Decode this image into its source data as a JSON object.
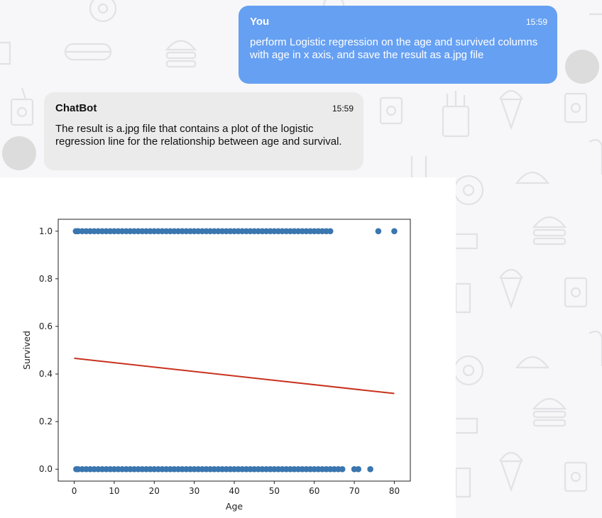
{
  "messages": [
    {
      "sender": "You",
      "time": "15:59",
      "text": "perform Logistic regression on the age and survived columns with age in x axis, and save the result as a.jpg file"
    },
    {
      "sender": "ChatBot",
      "time": "15:59",
      "text": "The result is a.jpg file that contains a plot of the logistic regression line for the relationship between age and survival."
    }
  ],
  "colors": {
    "user_bubble": "#66a0f2",
    "bot_bubble": "#ebebeb",
    "points": "#3a76af",
    "line": "#c8321e"
  },
  "chart_data": {
    "type": "scatter",
    "xlabel": "Age",
    "ylabel": "Survived",
    "xlim": [
      -4,
      84
    ],
    "ylim": [
      -0.05,
      1.05
    ],
    "xticks": [
      0,
      10,
      20,
      30,
      40,
      50,
      60,
      70,
      80
    ],
    "yticks": [
      0.0,
      0.2,
      0.4,
      0.6,
      0.8,
      1.0
    ],
    "ytick_labels": [
      "0.0",
      "0.2",
      "0.4",
      "0.6",
      "0.8",
      "1.0"
    ],
    "grid": false,
    "series": [
      {
        "kind": "points",
        "y": 1,
        "x": [
          0.4,
          0.9,
          1,
          2,
          3,
          4,
          5,
          6,
          7,
          8,
          9,
          10,
          11,
          12,
          13,
          14,
          15,
          16,
          17,
          18,
          19,
          20,
          21,
          22,
          23,
          24,
          25,
          26,
          27,
          28,
          29,
          30,
          31,
          32,
          33,
          34,
          35,
          36,
          37,
          38,
          39,
          40,
          41,
          42,
          43,
          44,
          45,
          46,
          47,
          48,
          49,
          50,
          51,
          52,
          53,
          54,
          55,
          56,
          57,
          58,
          59,
          60,
          61,
          62,
          63,
          64,
          76,
          80
        ]
      },
      {
        "kind": "points",
        "y": 0,
        "x": [
          0.5,
          1,
          2,
          3,
          4,
          5,
          6,
          7,
          8,
          9,
          10,
          11,
          12,
          13,
          14,
          15,
          16,
          17,
          18,
          19,
          20,
          21,
          22,
          23,
          24,
          25,
          26,
          27,
          28,
          29,
          30,
          31,
          32,
          33,
          34,
          35,
          36,
          37,
          38,
          39,
          40,
          41,
          42,
          43,
          44,
          45,
          46,
          47,
          48,
          49,
          50,
          51,
          52,
          53,
          54,
          55,
          56,
          57,
          58,
          59,
          60,
          61,
          62,
          63,
          64,
          65,
          66,
          67,
          70,
          71,
          74
        ]
      },
      {
        "kind": "line",
        "x": [
          0,
          80
        ],
        "y": [
          0.466,
          0.318
        ]
      }
    ]
  }
}
